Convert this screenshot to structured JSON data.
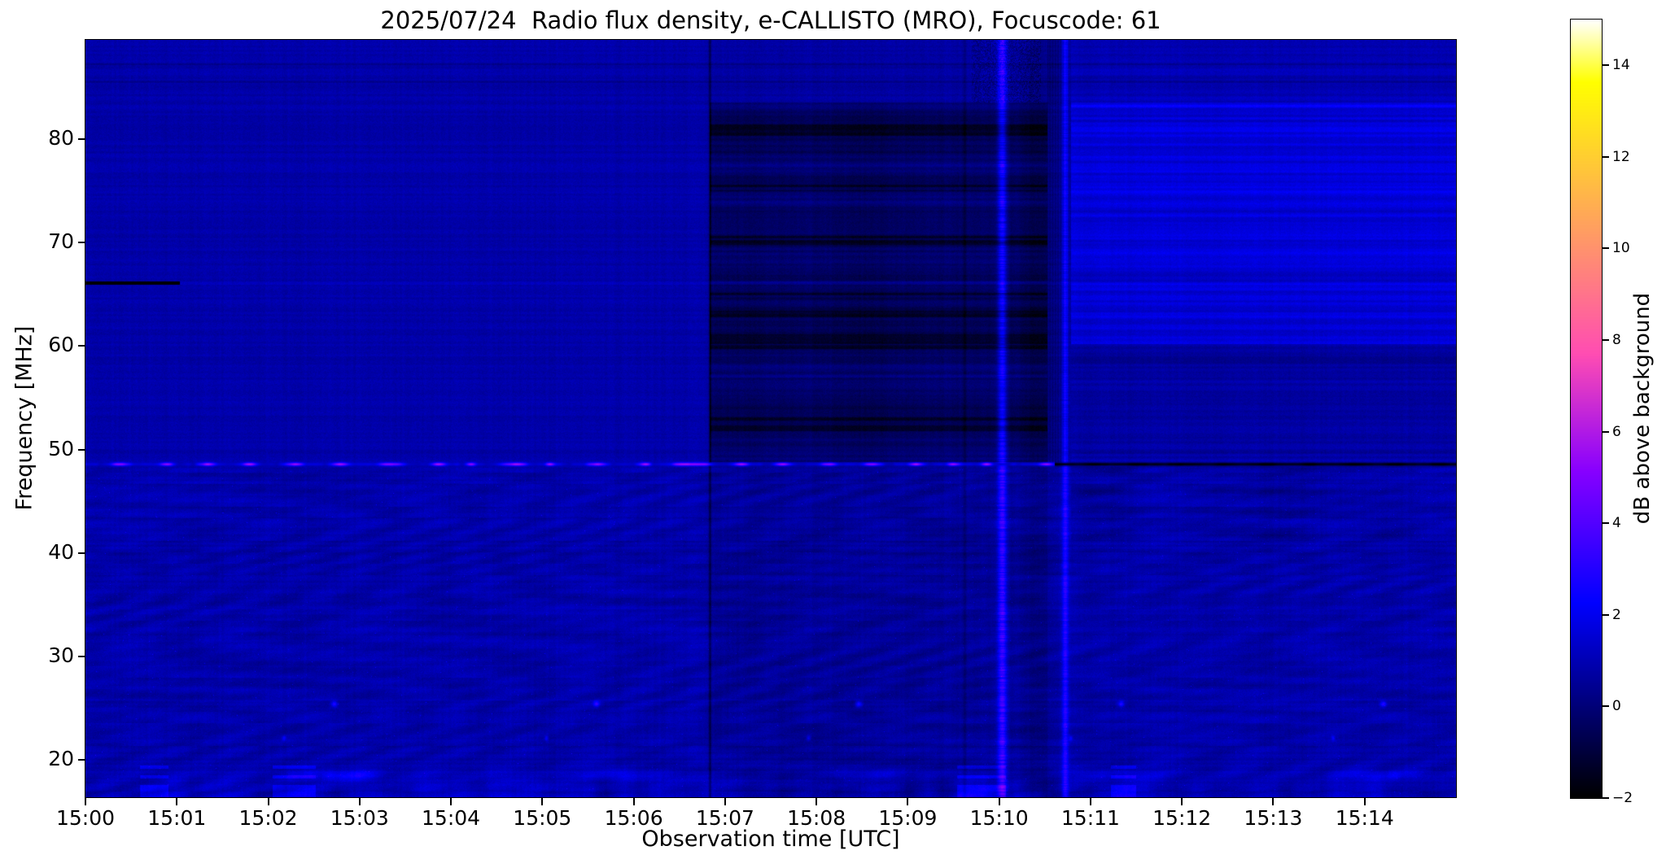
{
  "figure": {
    "background": "#ffffff",
    "axis_color": "#000000",
    "text_color": "#000000"
  },
  "chart_data": {
    "type": "heatmap",
    "title": "2025/07/24  Radio flux density, e-CALLISTO (MRO), Focuscode: 61",
    "xlabel": "Observation time [UTC]",
    "ylabel": "Frequency [MHz]",
    "colorbar_label": "dB above background",
    "x_tick_labels": [
      "15:00",
      "15:01",
      "15:02",
      "15:03",
      "15:04",
      "15:05",
      "15:06",
      "15:07",
      "15:08",
      "15:09",
      "15:10",
      "15:11",
      "15:12",
      "15:13",
      "15:14"
    ],
    "x_range_minutes_after_1500": [
      0,
      15
    ],
    "y_ticks_mhz": [
      20,
      30,
      40,
      50,
      60,
      70,
      80
    ],
    "y_range_mhz": [
      16.4,
      89.6
    ],
    "colorbar_ticks_db": [
      -2,
      0,
      2,
      4,
      6,
      8,
      10,
      12,
      14
    ],
    "colorbar_tick_labels": [
      "−2",
      "0",
      "2",
      "4",
      "6",
      "8",
      "10",
      "12",
      "14"
    ],
    "colorbar_range_db": [
      -2,
      15
    ],
    "colormap": "gnuplot2",
    "background_level_db": 0.8,
    "grid": false,
    "legend": "none",
    "features": {
      "rfi_carrier_line": {
        "freq_mhz": 48.6,
        "t0_min": 0,
        "t1_min": 15,
        "bright_until_min": 10.6,
        "bright_peak_db": 5.5,
        "dark_level_db": -1.6,
        "note": "dashed horizontal interference line across full record; bright violet dots until ~15:10:36, dark dashes afterwards"
      },
      "dark_segment_66mhz": {
        "freq_mhz": 66.1,
        "t0_min": 0,
        "t1_min": 1.03,
        "level_db": -2,
        "note": "black horizontal segment from 15:00 to 15:01"
      },
      "attenuated_block": {
        "t0_min": 6.83,
        "t1_min": 10.52,
        "f0_mhz": 48.8,
        "f1_mhz": 83.6,
        "delta_db": -1.25,
        "note": "dark rectangular region with horizontal banding, ~15:06:50 to 15:10:31"
      },
      "bright_vertical_stripes": [
        {
          "t_min": 10.03,
          "amp_db": 2.8,
          "sigma_min": 0.05
        },
        {
          "t_min": 10.72,
          "amp_db": 2.1,
          "sigma_min": 0.035
        }
      ],
      "brightened_upper_band_after": {
        "t0_min": 10.78,
        "f0_mhz": 60.2,
        "f1_mhz": 83.6,
        "delta_db": 0.8,
        "note": "brighter horizontally-striped blue band from ~15:10:47 to end"
      },
      "periodic_calibration_marks": {
        "t_first_min": 2.72,
        "period_min": 2.87,
        "dot_freqs_mhz": [
          25.45,
          22.15
        ],
        "dash_freq_mhz": 18.55,
        "note": "repeating bright speckles/dashes in the low-frequency band"
      },
      "lower_band_waves": {
        "f_below_mhz": 48.3,
        "note": "rippled interference-pattern noise with speckles below the RFI line"
      }
    }
  }
}
